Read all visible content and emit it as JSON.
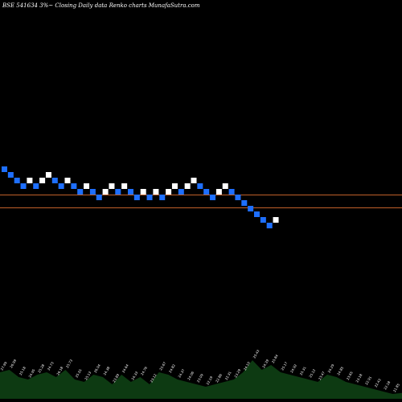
{
  "chart_data": {
    "type": "renko",
    "title": "BSE 541634  3%~  Closing Daily data  Renko  charts MunafaSutra.com",
    "box_colors": {
      "up": "#ffffff",
      "down": "#1e6fff"
    },
    "reference_line_color": "#c0602a",
    "reference_levels": [
      30,
      27
    ],
    "bricks": [
      {
        "dir": "down",
        "level": 35
      },
      {
        "dir": "down",
        "level": 34
      },
      {
        "dir": "down",
        "level": 33
      },
      {
        "dir": "down",
        "level": 32
      },
      {
        "dir": "up",
        "level": 33
      },
      {
        "dir": "down",
        "level": 32
      },
      {
        "dir": "up",
        "level": 33
      },
      {
        "dir": "up",
        "level": 34
      },
      {
        "dir": "down",
        "level": 33
      },
      {
        "dir": "down",
        "level": 32
      },
      {
        "dir": "up",
        "level": 33
      },
      {
        "dir": "down",
        "level": 32
      },
      {
        "dir": "down",
        "level": 31
      },
      {
        "dir": "up",
        "level": 32
      },
      {
        "dir": "down",
        "level": 31
      },
      {
        "dir": "down",
        "level": 30
      },
      {
        "dir": "up",
        "level": 31
      },
      {
        "dir": "up",
        "level": 32
      },
      {
        "dir": "down",
        "level": 31
      },
      {
        "dir": "up",
        "level": 32
      },
      {
        "dir": "down",
        "level": 31
      },
      {
        "dir": "down",
        "level": 30
      },
      {
        "dir": "up",
        "level": 31
      },
      {
        "dir": "down",
        "level": 30
      },
      {
        "dir": "up",
        "level": 31
      },
      {
        "dir": "down",
        "level": 30
      },
      {
        "dir": "up",
        "level": 31
      },
      {
        "dir": "up",
        "level": 32
      },
      {
        "dir": "down",
        "level": 31
      },
      {
        "dir": "up",
        "level": 32
      },
      {
        "dir": "up",
        "level": 33
      },
      {
        "dir": "down",
        "level": 32
      },
      {
        "dir": "down",
        "level": 31
      },
      {
        "dir": "down",
        "level": 30
      },
      {
        "dir": "up",
        "level": 31
      },
      {
        "dir": "up",
        "level": 32
      },
      {
        "dir": "down",
        "level": 31
      },
      {
        "dir": "down",
        "level": 30
      },
      {
        "dir": "down",
        "level": 29
      },
      {
        "dir": "down",
        "level": 28
      },
      {
        "dir": "down",
        "level": 27
      },
      {
        "dir": "down",
        "level": 26
      },
      {
        "dir": "down",
        "level": 25
      },
      {
        "dir": "up",
        "level": 26
      }
    ],
    "volume": [
      {
        "label": "27.99",
        "value": 0.55
      },
      {
        "label": "26.99",
        "value": 0.6
      },
      {
        "label": "25.18",
        "value": 0.45
      },
      {
        "label": "24.95",
        "value": 0.4
      },
      {
        "label": "25.28",
        "value": 0.5
      },
      {
        "label": "24.73",
        "value": 0.55
      },
      {
        "label": "26.18",
        "value": 0.45
      },
      {
        "label": "25.73",
        "value": 0.6
      },
      {
        "label": "25.55",
        "value": 0.4
      },
      {
        "label": "25.13",
        "value": 0.35
      },
      {
        "label": "26.04",
        "value": 0.5
      },
      {
        "label": "24.38",
        "value": 0.45
      },
      {
        "label": "23.89",
        "value": 0.3
      },
      {
        "label": "24.64",
        "value": 0.5
      },
      {
        "label": "24.33",
        "value": 0.35
      },
      {
        "label": "24.76",
        "value": 0.45
      },
      {
        "label": "23.12",
        "value": 0.3
      },
      {
        "label": "25.67",
        "value": 0.55
      },
      {
        "label": "24.82",
        "value": 0.5
      },
      {
        "label": "24.37",
        "value": 0.4
      },
      {
        "label": "24.06",
        "value": 0.35
      },
      {
        "label": "23.09",
        "value": 0.3
      },
      {
        "label": "22.19",
        "value": 0.25
      },
      {
        "label": "22.86",
        "value": 0.3
      },
      {
        "label": "22.31",
        "value": 0.35
      },
      {
        "label": "23.29",
        "value": 0.4
      },
      {
        "label": "24.10",
        "value": 0.55
      },
      {
        "label": "25.43",
        "value": 0.8
      },
      {
        "label": "24.39",
        "value": 0.6
      },
      {
        "label": "25.84",
        "value": 0.7
      },
      {
        "label": "25.17",
        "value": 0.55
      },
      {
        "label": "24.92",
        "value": 0.5
      },
      {
        "label": "25.31",
        "value": 0.45
      },
      {
        "label": "25.12",
        "value": 0.4
      },
      {
        "label": "23.47",
        "value": 0.35
      },
      {
        "label": "24.29",
        "value": 0.5
      },
      {
        "label": "24.85",
        "value": 0.45
      },
      {
        "label": "23.65",
        "value": 0.35
      },
      {
        "label": "23.18",
        "value": 0.3
      },
      {
        "label": "22.91",
        "value": 0.25
      },
      {
        "label": "22.43",
        "value": 0.2
      },
      {
        "label": "22.18",
        "value": 0.15
      },
      {
        "label": "21.85",
        "value": 0.1
      },
      {
        "label": "22.08",
        "value": 0.12
      }
    ]
  }
}
